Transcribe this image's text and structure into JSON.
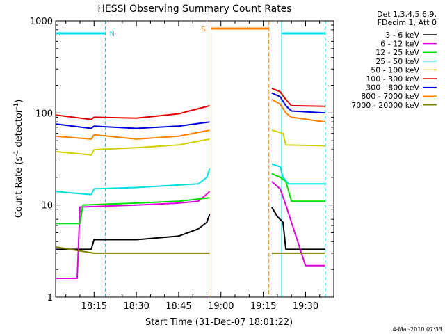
{
  "chart_data": {
    "type": "line",
    "title": "HESSI Observing Summary Count Rates",
    "xlabel": "Start Time (31-Dec-07 18:01:22)",
    "ylabel_main": "Count Rate (s",
    "ylabel_sup1": "-1",
    "ylabel_mid": " detector",
    "ylabel_sup2": "-1",
    "ylabel_end": ")",
    "yscale": "log",
    "ylim": [
      1,
      1000
    ],
    "xlim": [
      "18:01:22",
      "19:40:00"
    ],
    "y_ticks": [
      "1",
      "10",
      "100",
      "1000"
    ],
    "x_ticks": [
      "18:15",
      "18:30",
      "18:45",
      "19:00",
      "19:15",
      "19:30"
    ],
    "legend": {
      "placement": "right",
      "header": [
        "Det 1,3,4,5,6,9,",
        "FDecim 1, Att 0"
      ]
    },
    "annotations": {
      "night_label": "N",
      "saa_label": "S",
      "timestamp": "4-Mar-2010 07:33"
    },
    "flags": {
      "night": [
        [
          "18:01:22",
          "18:19:00"
        ],
        [
          "19:21:30",
          "19:37:00"
        ]
      ],
      "saa": [
        [
          "18:56:30",
          "19:17:00"
        ]
      ]
    },
    "series": [
      {
        "name": "3 - 6 keV",
        "color": "#000000",
        "points": [
          [
            "18:01:22",
            3.3
          ],
          [
            "18:14:00",
            3.3
          ],
          [
            "18:15:00",
            4.2
          ],
          [
            "18:30:00",
            4.2
          ],
          [
            "18:45:00",
            4.6
          ],
          [
            "18:52:00",
            5.5
          ],
          [
            "18:55:00",
            6.5
          ],
          [
            "18:56:00",
            8
          ],
          null,
          [
            "19:18:00",
            9.5
          ],
          [
            "19:20:00",
            7.5
          ],
          [
            "19:22:00",
            6.5
          ],
          [
            "19:23:00",
            3.3
          ],
          [
            "19:37:00",
            3.3
          ]
        ]
      },
      {
        "name": "6 - 12 keV",
        "color": "#e000e0",
        "points": [
          [
            "18:01:22",
            1.6
          ],
          [
            "18:09:00",
            1.6
          ],
          [
            "18:10:00",
            9.5
          ],
          [
            "18:30:00",
            10
          ],
          [
            "18:45:00",
            10.5
          ],
          [
            "18:52:00",
            11
          ],
          [
            "18:56:00",
            14
          ],
          null,
          [
            "19:18:00",
            18
          ],
          [
            "19:21:00",
            15
          ],
          [
            "19:23:00",
            10
          ],
          [
            "19:30:00",
            2.2
          ],
          [
            "19:37:00",
            2.2
          ]
        ]
      },
      {
        "name": "12 - 25 keV",
        "color": "#00e000",
        "points": [
          [
            "18:01:22",
            6.3
          ],
          [
            "18:10:00",
            6.3
          ],
          [
            "18:11:00",
            10
          ],
          [
            "18:30:00",
            10.5
          ],
          [
            "18:45:00",
            11
          ],
          [
            "18:56:00",
            12
          ],
          null,
          [
            "19:18:00",
            22
          ],
          [
            "19:21:00",
            20
          ],
          [
            "19:23:00",
            18
          ],
          [
            "19:25:00",
            11
          ],
          [
            "19:37:00",
            11
          ]
        ]
      },
      {
        "name": "25 - 50 keV",
        "color": "#00e0e0",
        "points": [
          [
            "18:01:22",
            14
          ],
          [
            "18:14:00",
            13
          ],
          [
            "18:15:00",
            15
          ],
          [
            "18:30:00",
            15.5
          ],
          [
            "18:45:00",
            16.5
          ],
          [
            "18:52:00",
            17
          ],
          [
            "18:55:00",
            20
          ],
          [
            "18:56:00",
            25
          ],
          null,
          [
            "19:18:00",
            28
          ],
          [
            "19:21:00",
            26
          ],
          [
            "19:22:00",
            20
          ],
          [
            "19:24:00",
            17
          ],
          [
            "19:37:00",
            17
          ]
        ]
      },
      {
        "name": "50 - 100 keV",
        "color": "#d0d000",
        "points": [
          [
            "18:01:22",
            38
          ],
          [
            "18:14:00",
            35
          ],
          [
            "18:15:00",
            40
          ],
          [
            "18:30:00",
            42
          ],
          [
            "18:45:00",
            45
          ],
          [
            "18:56:00",
            52
          ],
          null,
          [
            "19:18:00",
            65
          ],
          [
            "19:22:00",
            60
          ],
          [
            "19:23:00",
            45
          ],
          [
            "19:37:00",
            44
          ]
        ]
      },
      {
        "name": "100 - 300 keV",
        "color": "#e00000",
        "points": [
          [
            "18:01:22",
            95
          ],
          [
            "18:14:00",
            85
          ],
          [
            "18:15:00",
            90
          ],
          [
            "18:30:00",
            88
          ],
          [
            "18:45:00",
            98
          ],
          [
            "18:56:00",
            120
          ],
          null,
          [
            "19:18:00",
            185
          ],
          [
            "19:21:00",
            170
          ],
          [
            "19:23:00",
            140
          ],
          [
            "19:25:00",
            120
          ],
          [
            "19:37:00",
            118
          ]
        ]
      },
      {
        "name": "300 - 800 keV",
        "color": "#0000e0",
        "points": [
          [
            "18:01:22",
            76
          ],
          [
            "18:14:00",
            68
          ],
          [
            "18:15:00",
            72
          ],
          [
            "18:30:00",
            68
          ],
          [
            "18:45:00",
            72
          ],
          [
            "18:56:00",
            80
          ],
          null,
          [
            "19:18:00",
            165
          ],
          [
            "19:21:00",
            150
          ],
          [
            "19:23:00",
            120
          ],
          [
            "19:25:00",
            105
          ],
          [
            "19:37:00",
            100
          ]
        ]
      },
      {
        "name": "800 - 7000 keV",
        "color": "#ff8000",
        "points": [
          [
            "18:01:22",
            56
          ],
          [
            "18:14:00",
            52
          ],
          [
            "18:15:00",
            58
          ],
          [
            "18:30:00",
            52
          ],
          [
            "18:45:00",
            56
          ],
          [
            "18:56:00",
            65
          ],
          null,
          [
            "19:18:00",
            140
          ],
          [
            "19:21:00",
            125
          ],
          [
            "19:23:00",
            100
          ],
          [
            "19:25:00",
            90
          ],
          [
            "19:37:00",
            80
          ]
        ]
      },
      {
        "name": "7000 - 20000 keV",
        "color": "#808000",
        "points": [
          [
            "18:01:22",
            3.5
          ],
          [
            "18:15:00",
            3
          ],
          [
            "18:30:00",
            3
          ],
          [
            "18:45:00",
            3
          ],
          [
            "18:56:00",
            3
          ],
          null,
          [
            "19:18:00",
            3
          ],
          [
            "19:37:00",
            3
          ]
        ]
      }
    ]
  }
}
